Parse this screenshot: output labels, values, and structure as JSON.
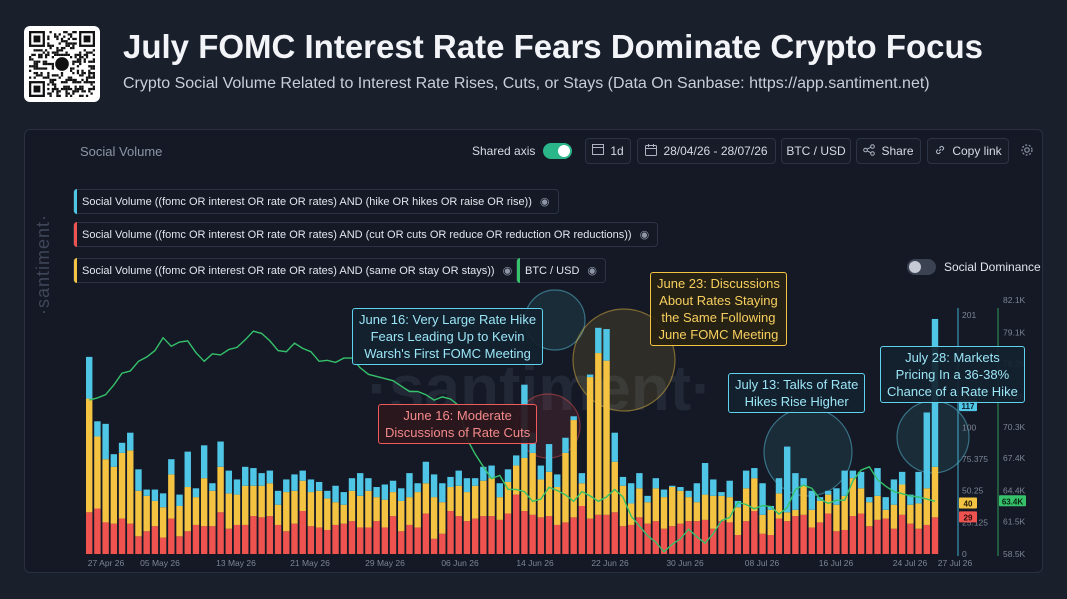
{
  "header": {
    "title": "July FOMC Interest Rate Fears Dominate Crypto Focus",
    "subtitle": "Crypto Social Volume Related to Interest Rate Rises, Cuts, or Stays (Data On Sanbase: https://app.santiment.net)"
  },
  "panel": {
    "title": "Social Volume",
    "shared_axis_label": "Shared axis",
    "interval": "1d",
    "date_range": "28/04/26 - 28/07/26",
    "pair": "BTC / USD",
    "share_label": "Share",
    "copy_link_label": "Copy link",
    "social_dominance_label": "Social Dominance",
    "side_watermark": "·santiment·",
    "center_watermark": "·santiment·"
  },
  "legend": [
    {
      "label": "Social Volume ((fomc OR interest OR rate OR rates) AND (hike OR hikes OR raise OR rise))",
      "color": "#4fc6e6"
    },
    {
      "label": "Social Volume ((fomc OR interest OR rate OR rates) AND (cut OR cuts OR reduce OR reduction OR reductions))",
      "color": "#ef5350"
    },
    {
      "label": "Social Volume ((fomc OR interest OR rate OR rates) AND (same OR stay OR stays))",
      "color": "#f5c342"
    },
    {
      "label": "BTC / USD",
      "color": "#35c26b"
    }
  ],
  "callouts": [
    {
      "text": "June 16: Very Large Rate Hike\nFears Leading Up to Kevin\nWarsh's First FOMC Meeting",
      "style": "blue"
    },
    {
      "text": "June 16: Moderate\nDiscussions of Rate Cuts",
      "style": "red"
    },
    {
      "text": "June 23: Discussions\nAbout Rates Staying\nthe Same Following\nJune FOMC Meeting",
      "style": "yellow"
    },
    {
      "text": "July 13: Talks of Rate\nHikes Rise Higher",
      "style": "blue"
    },
    {
      "text": "July 28: Markets\nPricing In a 36-38%\nChance of a Rate Hike",
      "style": "blue"
    }
  ],
  "colors": {
    "hike": "#4fc6e6",
    "cut": "#ef5350",
    "stay": "#f5c342",
    "btc": "#35c26b",
    "axis_text": "#7d8596"
  },
  "chart_data": {
    "type": "bar",
    "x_tick_labels": [
      "27 Apr 26",
      "05 May 26",
      "13 May 26",
      "21 May 26",
      "29 May 26",
      "06 Jun 26",
      "14 Jun 26",
      "22 Jun 26",
      "30 Jun 26",
      "08 Jul 26",
      "16 Jul 26",
      "24 Jul 26",
      "27 Jul 26"
    ],
    "y_left_ticks": [
      "0",
      "25.125",
      "50.25",
      "75.375",
      "100",
      "125",
      "201"
    ],
    "y_left_range": [
      0,
      201
    ],
    "y_right_ticks": [
      "58.5K",
      "61.5K",
      "64.4K",
      "67.4K",
      "70.3K",
      "73.2K",
      "76.2K",
      "79.1K",
      "82.1K"
    ],
    "y_right_range": [
      58.5,
      82.1
    ],
    "current_markers": {
      "hike": "117",
      "stay": "40",
      "cut": "29",
      "btc": "63.4K"
    },
    "stacked": true,
    "series": [
      {
        "name": "Social Volume ((fomc OR interest OR rate OR rates) AND (hike OR hikes OR raise OR rise))",
        "key": "hike",
        "values": [
          33,
          12,
          28,
          10,
          8,
          14,
          17,
          5,
          9,
          11,
          12,
          9,
          28,
          7,
          26,
          6,
          20,
          18,
          12,
          15,
          14,
          10,
          10,
          11,
          10,
          13,
          8,
          10,
          7,
          6,
          13,
          10,
          10,
          18,
          10,
          8,
          12,
          9,
          10,
          19,
          7,
          17,
          18,
          15,
          8,
          12,
          11,
          6,
          11,
          10,
          11,
          10,
          8,
          58,
          16,
          11,
          22,
          10,
          12,
          3,
          8,
          2,
          20,
          25,
          23,
          7,
          16,
          12,
          5,
          8,
          6,
          1,
          3,
          5,
          15,
          25,
          13,
          3,
          13,
          5,
          14,
          8,
          25,
          3,
          12,
          52,
          29,
          6,
          15,
          3,
          3,
          13,
          20,
          6,
          13,
          4,
          22,
          10,
          20,
          10,
          8,
          25,
          60,
          117
        ]
      },
      {
        "name": "Social Volume ((fomc OR interest OR rate OR rates) AND (cut OR cuts OR reduce OR reduction OR reductions))",
        "key": "cut",
        "values": [
          33,
          36,
          25,
          24,
          28,
          24,
          14,
          18,
          22,
          13,
          28,
          14,
          18,
          23,
          22,
          22,
          33,
          20,
          23,
          23,
          30,
          29,
          30,
          23,
          18,
          24,
          34,
          22,
          21,
          19,
          23,
          24,
          26,
          21,
          21,
          26,
          21,
          30,
          18,
          23,
          21,
          32,
          12,
          16,
          34,
          30,
          26,
          28,
          30,
          30,
          27,
          32,
          47,
          34,
          31,
          29,
          30,
          23,
          25,
          29,
          38,
          28,
          31,
          31,
          33,
          22,
          23,
          29,
          24,
          26,
          20,
          22,
          24,
          26,
          26,
          27,
          20,
          26,
          25,
          15,
          26,
          34,
          16,
          15,
          28,
          26,
          30,
          31,
          21,
          25,
          32,
          18,
          19,
          30,
          32,
          22,
          27,
          28,
          20,
          31,
          24,
          20,
          23,
          29
        ]
      },
      {
        "name": "Social Volume ((fomc OR interest OR rate OR rates) AND (same OR stay OR stays))",
        "key": "stay",
        "values": [
          90,
          57,
          50,
          45,
          52,
          58,
          36,
          28,
          20,
          24,
          35,
          24,
          35,
          22,
          38,
          28,
          36,
          28,
          24,
          31,
          24,
          25,
          26,
          16,
          31,
          26,
          24,
          27,
          29,
          25,
          18,
          15,
          24,
          25,
          29,
          19,
          22,
          19,
          24,
          22,
          28,
          24,
          33,
          25,
          19,
          24,
          23,
          26,
          28,
          30,
          18,
          25,
          23,
          42,
          49,
          30,
          35,
          30,
          55,
          77,
          18,
          112,
          128,
          122,
          40,
          32,
          17,
          23,
          17,
          26,
          25,
          31,
          26,
          19,
          15,
          20,
          26,
          20,
          20,
          22,
          26,
          26,
          15,
          20,
          20,
          7,
          5,
          23,
          14,
          17,
          15,
          21,
          27,
          30,
          20,
          19,
          19,
          7,
          19,
          24,
          15,
          20,
          29,
          40
        ]
      },
      {
        "name": "BTC / USD",
        "key": "btc",
        "axis": "right",
        "values": [
          72.8,
          73.0,
          73.3,
          74.2,
          75.3,
          75.5,
          76.4,
          76.8,
          77.4,
          78.6,
          77.8,
          78.2,
          78.3,
          77.2,
          76.4,
          77.1,
          77.0,
          77.5,
          77.7,
          78.4,
          79.2,
          79.0,
          78.3,
          77.4,
          77.3,
          78.1,
          77.6,
          77.3,
          76.4,
          76.5,
          76.3,
          76.7,
          76.7,
          75.8,
          75.2,
          75.0,
          74.8,
          74.6,
          74.1,
          73.6,
          73.6,
          73.3,
          72.8,
          73.1,
          72.9,
          72.3,
          69.2,
          67.8,
          66.6,
          65.5,
          65.8,
          64.5,
          64.5,
          64.3,
          63.4,
          63.6,
          64.7,
          64.4,
          64.0,
          63.4,
          64.3,
          63.9,
          63.4,
          63.8,
          64.5,
          63.8,
          62.0,
          61.1,
          60.2,
          59.6,
          58.7,
          59.4,
          59.9,
          60.8,
          60.1,
          59.5,
          60.4,
          61.6,
          61.9,
          63.3,
          63.1,
          62.7,
          63.0,
          62.9,
          62.2,
          62.8,
          64.5,
          64.9,
          64.6,
          63.6,
          63.2,
          63.5,
          63.5,
          65.3,
          66.3,
          66.6,
          65.4,
          64.8,
          64.3,
          64.1,
          63.9,
          63.8,
          63.6,
          63.4
        ]
      }
    ]
  }
}
